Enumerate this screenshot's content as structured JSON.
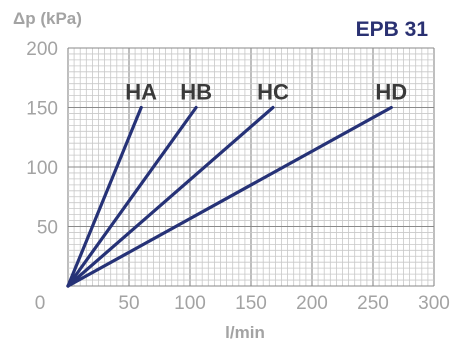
{
  "chart_data": {
    "type": "line",
    "title": "EPB 31",
    "xlabel": "l/min",
    "ylabel": "Δp (kPa)",
    "xlim": [
      0,
      300
    ],
    "ylim": [
      0,
      200
    ],
    "x_ticks": [
      "0",
      "50",
      "100",
      "150",
      "200",
      "250",
      "300"
    ],
    "y_ticks": [
      "50",
      "100",
      "150",
      "200"
    ],
    "grid": true,
    "line_color": "#263277",
    "series": [
      {
        "name": "HA",
        "x": [
          0,
          60
        ],
        "y": [
          0,
          150
        ]
      },
      {
        "name": "HB",
        "x": [
          0,
          105
        ],
        "y": [
          0,
          150
        ]
      },
      {
        "name": "HC",
        "x": [
          0,
          168
        ],
        "y": [
          0,
          150
        ]
      },
      {
        "name": "HD",
        "x": [
          0,
          265
        ],
        "y": [
          0,
          150
        ]
      }
    ]
  }
}
